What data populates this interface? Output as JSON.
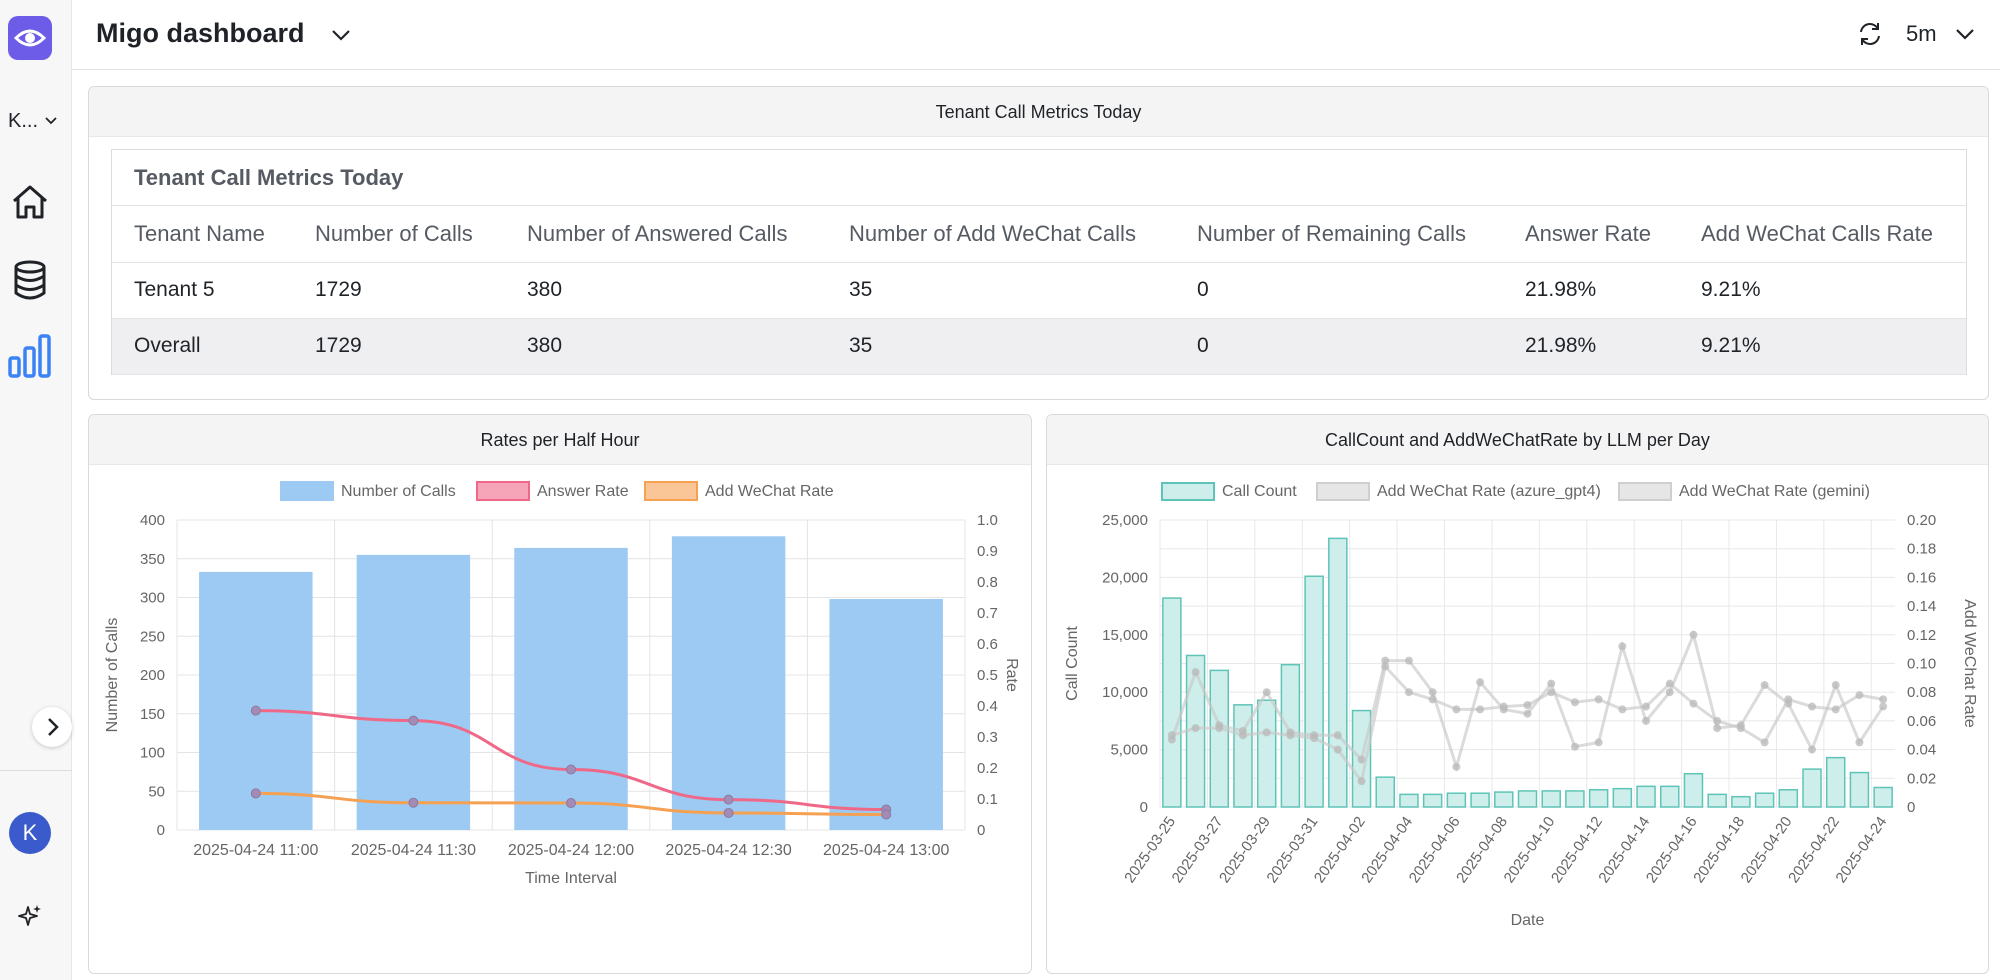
{
  "app": {
    "title": "Migo dashboard",
    "workspace": "K...",
    "refresh_interval": "5m",
    "user_initial": "K"
  },
  "icons": [
    "eye-logo-icon",
    "chevron-down-icon",
    "home-icon",
    "database-icon",
    "bar-chart-icon",
    "chevron-right-icon",
    "sparkle-icon",
    "refresh-icon"
  ],
  "colors": {
    "accent": "#6c5ce7",
    "nav_active": "#3b82f6",
    "avatar": "#3b5bcc",
    "bars": "#9ccaf2",
    "answer_line": "#f06888",
    "add_line": "#f6a052",
    "teal": "#5fc4b8"
  },
  "table_panel": {
    "header": "Tenant Call Metrics Today",
    "table_title": "Tenant Call Metrics Today",
    "columns": [
      "Tenant Name",
      "Number of Calls",
      "Number of Answered Calls",
      "Number of Add WeChat Calls",
      "Number of Remaining Calls",
      "Answer Rate",
      "Add WeChat Calls Rate"
    ],
    "rows": [
      [
        "Tenant 5",
        "1729",
        "380",
        "35",
        "0",
        "21.98%",
        "9.21%"
      ],
      [
        "Overall",
        "1729",
        "380",
        "35",
        "0",
        "21.98%",
        "9.21%"
      ]
    ]
  },
  "rates_panel": {
    "header": "Rates per Half Hour"
  },
  "llm_panel": {
    "header": "CallCount and AddWeChatRate by LLM per Day"
  },
  "chart_data": [
    {
      "type": "bar",
      "title": "Rates per Half Hour",
      "xlabel": "Time Interval",
      "ylabel": "Number of Calls",
      "y2label": "Rate",
      "categories": [
        "2025-04-24 11:00",
        "2025-04-24 11:30",
        "2025-04-24 12:00",
        "2025-04-24 12:30",
        "2025-04-24 13:00"
      ],
      "ylim": [
        0,
        400
      ],
      "y2lim": [
        0,
        1.0
      ],
      "yticks": [
        "0",
        "50",
        "100",
        "150",
        "200",
        "250",
        "300",
        "350",
        "400"
      ],
      "y2ticks": [
        "0",
        "0.1",
        "0.2",
        "0.3",
        "0.4",
        "0.5",
        "0.6",
        "0.7",
        "0.8",
        "0.9",
        "1.0"
      ],
      "legend": [
        "Number of Calls",
        "Answer Rate",
        "Add WeChat Rate"
      ],
      "series": [
        {
          "name": "Number of Calls",
          "type": "bar",
          "axis": "y",
          "values": [
            333,
            355,
            364,
            379,
            298
          ]
        },
        {
          "name": "Answer Rate",
          "type": "line",
          "axis": "y2",
          "values": [
            0.385,
            0.353,
            0.195,
            0.098,
            0.066
          ]
        },
        {
          "name": "Add WeChat Rate",
          "type": "line",
          "axis": "y2",
          "values": [
            0.118,
            0.088,
            0.087,
            0.055,
            0.05
          ]
        }
      ]
    },
    {
      "type": "bar",
      "title": "CallCount and AddWeChatRate by LLM per Day",
      "xlabel": "Date",
      "ylabel": "Call Count",
      "y2label": "Add WeChat Rate",
      "categories": [
        "2025-03-25",
        "2025-03-26",
        "2025-03-27",
        "2025-03-28",
        "2025-03-29",
        "2025-03-30",
        "2025-03-31",
        "2025-04-01",
        "2025-04-02",
        "2025-04-03",
        "2025-04-04",
        "2025-04-05",
        "2025-04-06",
        "2025-04-07",
        "2025-04-08",
        "2025-04-09",
        "2025-04-10",
        "2025-04-11",
        "2025-04-12",
        "2025-04-13",
        "2025-04-14",
        "2025-04-15",
        "2025-04-16",
        "2025-04-17",
        "2025-04-18",
        "2025-04-19",
        "2025-04-20",
        "2025-04-21",
        "2025-04-22",
        "2025-04-23",
        "2025-04-24"
      ],
      "xtick_labels": [
        "2025-03-25",
        "2025-03-27",
        "2025-03-29",
        "2025-03-31",
        "2025-04-02",
        "2025-04-04",
        "2025-04-06",
        "2025-04-08",
        "2025-04-10",
        "2025-04-12",
        "2025-04-14",
        "2025-04-16",
        "2025-04-18",
        "2025-04-20",
        "2025-04-22",
        "2025-04-24"
      ],
      "ylim": [
        0,
        25000
      ],
      "y2lim": [
        0,
        0.2
      ],
      "yticks": [
        "0",
        "5,000",
        "10,000",
        "15,000",
        "20,000",
        "25,000"
      ],
      "y2ticks": [
        "0",
        "0.02",
        "0.04",
        "0.06",
        "0.08",
        "0.10",
        "0.12",
        "0.14",
        "0.16",
        "0.18",
        "0.20"
      ],
      "legend": [
        "Call Count",
        "Add WeChat Rate (azure_gpt4)",
        "Add WeChat Rate (gemini)"
      ],
      "series": [
        {
          "name": "Call Count",
          "type": "bar",
          "axis": "y",
          "values": [
            18200,
            13200,
            11900,
            8900,
            9300,
            12400,
            20100,
            23400,
            8400,
            2600,
            1100,
            1100,
            1200,
            1200,
            1300,
            1400,
            1400,
            1400,
            1500,
            1600,
            1800,
            1800,
            2900,
            1100,
            900,
            1200,
            1500,
            3300,
            4300,
            3000,
            1700
          ]
        },
        {
          "name": "Add WeChat Rate (azure_gpt4)",
          "type": "line",
          "axis": "y2",
          "values": [
            0.047,
            0.094,
            0.057,
            0.053,
            0.08,
            0.052,
            0.05,
            0.05,
            0.033,
            0.102,
            0.102,
            0.08,
            0.028,
            0.087,
            0.068,
            0.065,
            0.086,
            0.042,
            0.045,
            0.112,
            0.06,
            0.08,
            0.12,
            0.055,
            0.057,
            0.085,
            0.072,
            0.04,
            0.085,
            0.045,
            0.07
          ]
        },
        {
          "name": "Add WeChat Rate (gemini)",
          "type": "line",
          "axis": "y2",
          "values": [
            0.05,
            0.055,
            0.055,
            0.05,
            0.052,
            0.05,
            0.048,
            0.04,
            0.018,
            0.098,
            0.08,
            0.075,
            0.068,
            0.068,
            0.07,
            0.071,
            0.08,
            0.073,
            0.075,
            0.068,
            0.07,
            0.086,
            0.072,
            0.06,
            0.055,
            0.045,
            0.075,
            0.07,
            0.068,
            0.078,
            0.075
          ]
        }
      ]
    }
  ]
}
